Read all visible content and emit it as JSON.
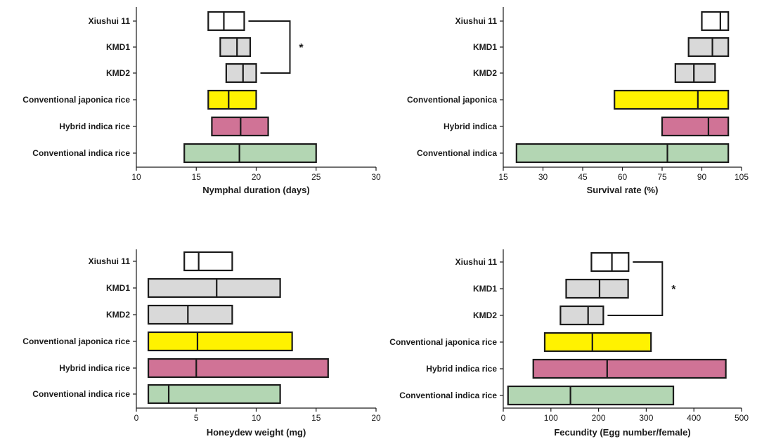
{
  "chart_data": [
    {
      "type": "box",
      "orientation": "horizontal",
      "xlabel": "Nymphal duration (days)",
      "xlim": [
        10,
        30
      ],
      "ticks": [
        10,
        15,
        20,
        25,
        30
      ],
      "categories": [
        "Xiushui 11",
        "KMD1",
        "KMD2",
        "Conventional japonica rice",
        "Hybrid indica rice",
        "Conventional indica rice"
      ],
      "series": [
        {
          "low": 16.0,
          "median": 17.3,
          "high": 19.0,
          "color": "#ffffff"
        },
        {
          "low": 17.0,
          "median": 18.4,
          "high": 19.5,
          "color": "#d9d9d9"
        },
        {
          "low": 17.5,
          "median": 18.9,
          "high": 20.0,
          "color": "#d9d9d9"
        },
        {
          "low": 16.0,
          "median": 17.7,
          "high": 20.0,
          "color": "#fff200"
        },
        {
          "low": 16.3,
          "median": 18.7,
          "high": 21.0,
          "color": "#d07396"
        },
        {
          "low": 14.0,
          "median": 18.6,
          "high": 25.0,
          "color": "#b3d6b3"
        }
      ],
      "significance": {
        "from": 0,
        "to": 2,
        "label": "*"
      }
    },
    {
      "type": "box",
      "orientation": "horizontal",
      "xlabel": "Survival rate (%)",
      "xlim": [
        15,
        105
      ],
      "ticks": [
        15,
        30,
        45,
        60,
        75,
        90,
        105
      ],
      "categories": [
        "Xiushui 11",
        "KMD1",
        "KMD2",
        "Conventional japonica",
        "Hybrid indica",
        "Conventional indica"
      ],
      "series": [
        {
          "low": 90.0,
          "median": 97.0,
          "high": 100.0,
          "color": "#ffffff"
        },
        {
          "low": 85.0,
          "median": 94.0,
          "high": 100.0,
          "color": "#d9d9d9"
        },
        {
          "low": 80.0,
          "median": 87.0,
          "high": 95.0,
          "color": "#d9d9d9"
        },
        {
          "low": 57.0,
          "median": 88.5,
          "high": 100.0,
          "color": "#fff200"
        },
        {
          "low": 75.0,
          "median": 92.5,
          "high": 100.0,
          "color": "#d07396"
        },
        {
          "low": 20.0,
          "median": 77.0,
          "high": 100.0,
          "color": "#b3d6b3"
        }
      ]
    },
    {
      "type": "box",
      "orientation": "horizontal",
      "xlabel": "Honeydew weight (mg)",
      "xlim": [
        0,
        20
      ],
      "ticks": [
        0,
        5,
        10,
        15,
        20
      ],
      "categories": [
        "Xiushui 11",
        "KMD1",
        "KMD2",
        "Conventional japonica rice",
        "Hybrid indica rice",
        "Conventional indica rice"
      ],
      "series": [
        {
          "low": 4.0,
          "median": 5.2,
          "high": 8.0,
          "color": "#ffffff"
        },
        {
          "low": 1.0,
          "median": 6.7,
          "high": 12.0,
          "color": "#d9d9d9"
        },
        {
          "low": 1.0,
          "median": 4.3,
          "high": 8.0,
          "color": "#d9d9d9"
        },
        {
          "low": 1.0,
          "median": 5.1,
          "high": 13.0,
          "color": "#fff200"
        },
        {
          "low": 1.0,
          "median": 5.0,
          "high": 16.0,
          "color": "#d07396"
        },
        {
          "low": 1.0,
          "median": 2.7,
          "high": 12.0,
          "color": "#b3d6b3"
        }
      ]
    },
    {
      "type": "box",
      "orientation": "horizontal",
      "xlabel": "Fecundity (Egg number/female)",
      "xlim": [
        0,
        500
      ],
      "ticks": [
        0,
        100,
        200,
        300,
        400,
        500
      ],
      "categories": [
        "Xiushui 11",
        "KMD1",
        "KMD2",
        "Conventional japonica rice",
        "Hybrid indica rice",
        "Conventional indica rice"
      ],
      "series": [
        {
          "low": 185,
          "median": 228,
          "high": 263,
          "color": "#ffffff"
        },
        {
          "low": 132,
          "median": 202,
          "high": 262,
          "color": "#d9d9d9"
        },
        {
          "low": 120,
          "median": 178,
          "high": 210,
          "color": "#d9d9d9"
        },
        {
          "low": 87,
          "median": 187,
          "high": 310,
          "color": "#fff200"
        },
        {
          "low": 63,
          "median": 218,
          "high": 467,
          "color": "#d07396"
        },
        {
          "low": 10,
          "median": 141,
          "high": 357,
          "color": "#b3d6b3"
        }
      ],
      "significance": {
        "from": 0,
        "to": 2,
        "label": "*"
      }
    }
  ]
}
